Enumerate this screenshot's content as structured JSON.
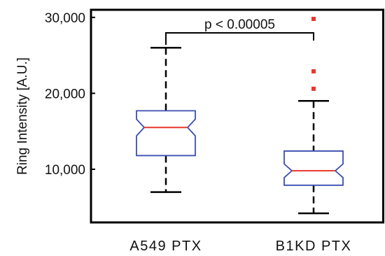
{
  "chart_data": {
    "type": "box",
    "ylabel": "Ring Intensity [A.U.]",
    "yticks": [
      10000,
      20000,
      30000
    ],
    "ytick_labels": [
      "10,000",
      "20,000",
      "30,000"
    ],
    "ylim": [
      3000,
      31000
    ],
    "categories": [
      "A549 PTX",
      "B1KD PTX"
    ],
    "boxes": [
      {
        "category": "A549 PTX",
        "whisker_low": 7000,
        "q1": 11800,
        "median": 15500,
        "q3": 17700,
        "whisker_high": 26000,
        "notch_low": 14400,
        "notch_high": 16600,
        "outliers": []
      },
      {
        "category": "B1KD PTX",
        "whisker_low": 4200,
        "q1": 7900,
        "median": 9800,
        "q3": 12400,
        "whisker_high": 19000,
        "notch_low": 8900,
        "notch_high": 10700,
        "outliers": [
          20600,
          22900,
          29800
        ]
      }
    ],
    "annotation": {
      "text": "p < 0.00005",
      "between": [
        "A549 PTX",
        "B1KD PTX"
      ]
    },
    "colors": {
      "box": "#3a4fb0",
      "median": "#e8372c",
      "outlier": "#e8372c",
      "axis": "#000000"
    }
  }
}
